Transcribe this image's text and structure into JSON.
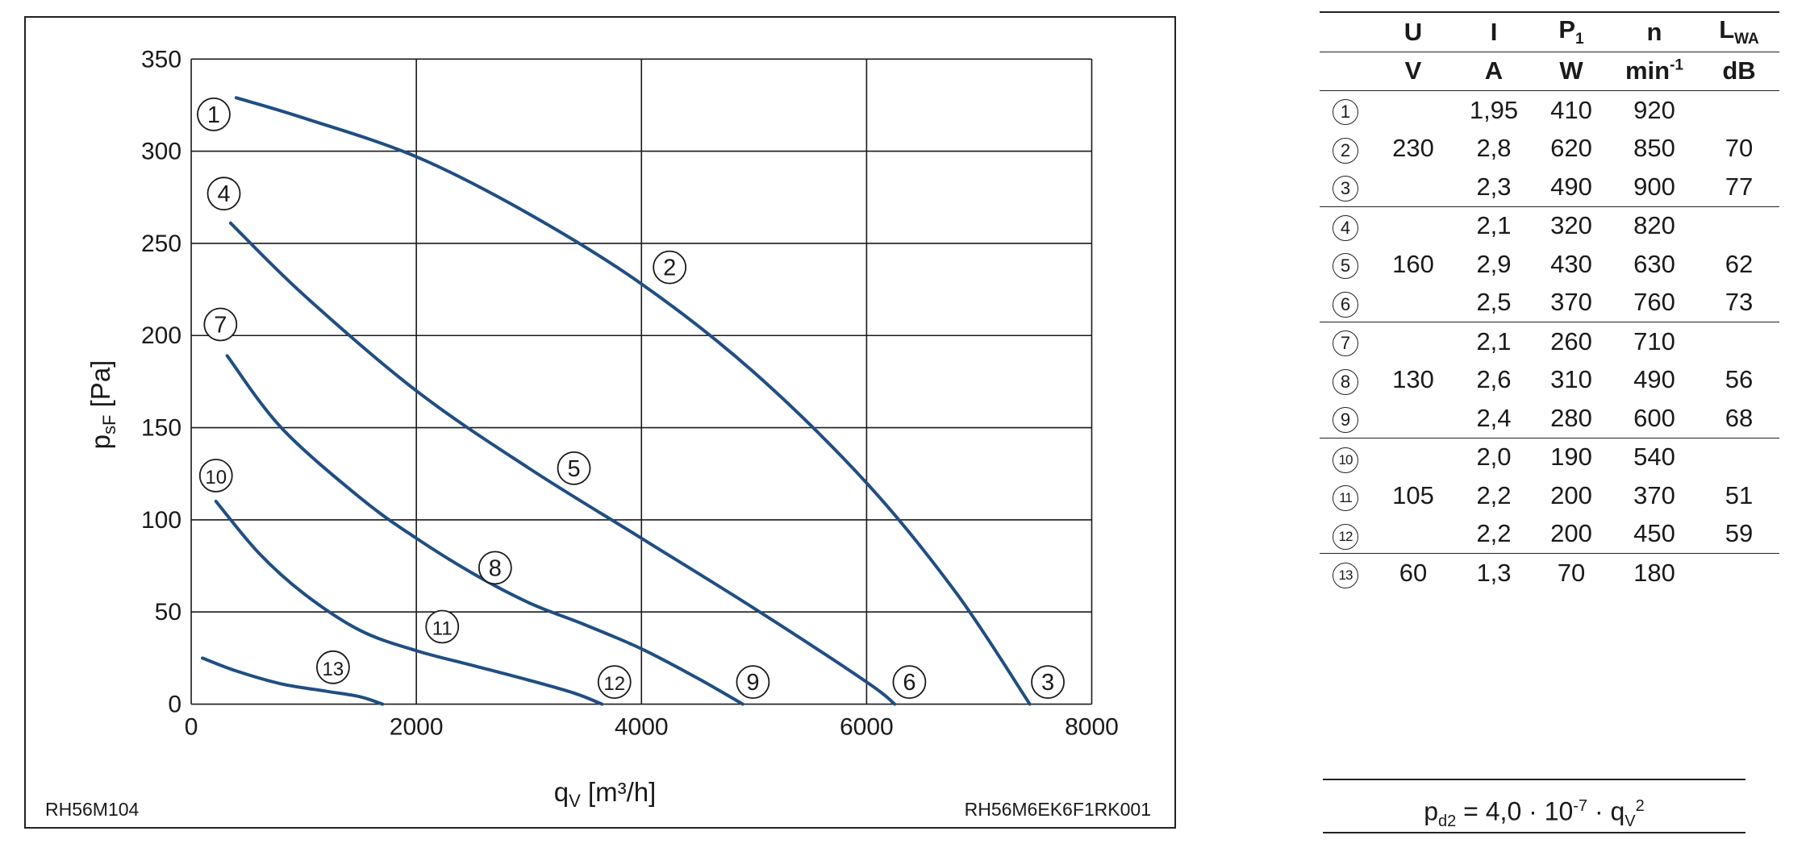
{
  "chart_data": {
    "type": "line",
    "xlabel_main": "q",
    "xlabel_sub": "V",
    "xlabel_unit": " [m³/h]",
    "ylabel_main": "p",
    "ylabel_sub": "sF",
    "ylabel_unit": " [Pa]",
    "xlim": [
      0,
      8000
    ],
    "ylim": [
      0,
      350
    ],
    "x_ticks": [
      0,
      2000,
      4000,
      6000,
      8000
    ],
    "y_ticks": [
      0,
      50,
      100,
      150,
      200,
      250,
      300,
      350
    ],
    "grid": true,
    "line_color": "#1f4e84",
    "series": [
      {
        "points": [
          [
            400,
            329
          ],
          [
            1000,
            318
          ],
          [
            2000,
            297
          ],
          [
            3000,
            266
          ],
          [
            4000,
            228
          ],
          [
            5000,
            180
          ],
          [
            6000,
            120
          ],
          [
            6800,
            60
          ],
          [
            7450,
            0
          ]
        ]
      },
      {
        "points": [
          [
            350,
            261
          ],
          [
            1000,
            222
          ],
          [
            2000,
            170
          ],
          [
            3000,
            128
          ],
          [
            4000,
            90
          ],
          [
            5000,
            52
          ],
          [
            6000,
            12
          ],
          [
            6250,
            0
          ]
        ]
      },
      {
        "points": [
          [
            320,
            189
          ],
          [
            800,
            150
          ],
          [
            1500,
            112
          ],
          [
            2000,
            90
          ],
          [
            2500,
            71
          ],
          [
            3000,
            55
          ],
          [
            3500,
            43
          ],
          [
            4000,
            30
          ],
          [
            4500,
            14
          ],
          [
            4900,
            0
          ]
        ]
      },
      {
        "points": [
          [
            220,
            110
          ],
          [
            600,
            82
          ],
          [
            1000,
            60
          ],
          [
            1500,
            40
          ],
          [
            2000,
            29
          ],
          [
            2500,
            21
          ],
          [
            3000,
            13
          ],
          [
            3400,
            6
          ],
          [
            3650,
            0
          ]
        ]
      },
      {
        "points": [
          [
            100,
            25
          ],
          [
            400,
            18
          ],
          [
            800,
            11
          ],
          [
            1200,
            7
          ],
          [
            1500,
            4
          ],
          [
            1700,
            0
          ]
        ]
      }
    ],
    "curve_labels": [
      {
        "text": "1",
        "x": 200,
        "y": 320
      },
      {
        "text": "2",
        "x": 4250,
        "y": 237
      },
      {
        "text": "3",
        "x": 7610,
        "y": 12
      },
      {
        "text": "4",
        "x": 290,
        "y": 277
      },
      {
        "text": "5",
        "x": 3400,
        "y": 128
      },
      {
        "text": "6",
        "x": 6380,
        "y": 12
      },
      {
        "text": "7",
        "x": 260,
        "y": 206
      },
      {
        "text": "8",
        "x": 2700,
        "y": 74
      },
      {
        "text": "9",
        "x": 4990,
        "y": 12
      },
      {
        "text": "10",
        "x": 220,
        "y": 124
      },
      {
        "text": "11",
        "x": 2230,
        "y": 42
      },
      {
        "text": "12",
        "x": 3760,
        "y": 12
      },
      {
        "text": "13",
        "x": 1260,
        "y": 20
      }
    ],
    "footer_left": "RH56M104",
    "footer_right": "RH56M6EK6F1RK001"
  },
  "table": {
    "headers": {
      "u": "U",
      "i": "I",
      "p_main": "P",
      "p_sub": "1",
      "n": "n",
      "l_main": "L",
      "l_sub": "WA"
    },
    "units": {
      "u": "V",
      "i": "A",
      "p": "W",
      "n_main": "min",
      "n_sup": "-1",
      "l": "dB"
    },
    "voltage_groups": [
      "230",
      "160",
      "130",
      "105",
      "60"
    ],
    "rows": [
      {
        "id": "1",
        "i": "1,95",
        "p": "410",
        "n": "920",
        "lwa": ""
      },
      {
        "id": "2",
        "i": "2,8",
        "p": "620",
        "n": "850",
        "lwa": "70"
      },
      {
        "id": "3",
        "i": "2,3",
        "p": "490",
        "n": "900",
        "lwa": "77"
      },
      {
        "id": "4",
        "i": "2,1",
        "p": "320",
        "n": "820",
        "lwa": ""
      },
      {
        "id": "5",
        "i": "2,9",
        "p": "430",
        "n": "630",
        "lwa": "62"
      },
      {
        "id": "6",
        "i": "2,5",
        "p": "370",
        "n": "760",
        "lwa": "73"
      },
      {
        "id": "7",
        "i": "2,1",
        "p": "260",
        "n": "710",
        "lwa": ""
      },
      {
        "id": "8",
        "i": "2,6",
        "p": "310",
        "n": "490",
        "lwa": "56"
      },
      {
        "id": "9",
        "i": "2,4",
        "p": "280",
        "n": "600",
        "lwa": "68"
      },
      {
        "id": "10",
        "i": "2,0",
        "p": "190",
        "n": "540",
        "lwa": ""
      },
      {
        "id": "11",
        "i": "2,2",
        "p": "200",
        "n": "370",
        "lwa": "51"
      },
      {
        "id": "12",
        "i": "2,2",
        "p": "200",
        "n": "450",
        "lwa": "59"
      },
      {
        "id": "13",
        "i": "1,3",
        "p": "70",
        "n": "180",
        "lwa": ""
      }
    ]
  },
  "formula": {
    "p": "p",
    "p_sub": "d2",
    "eq": " = 4,0 · 10",
    "exp": "-7",
    "tail": " · q",
    "q_sub": "V",
    "q_sup": "2"
  }
}
